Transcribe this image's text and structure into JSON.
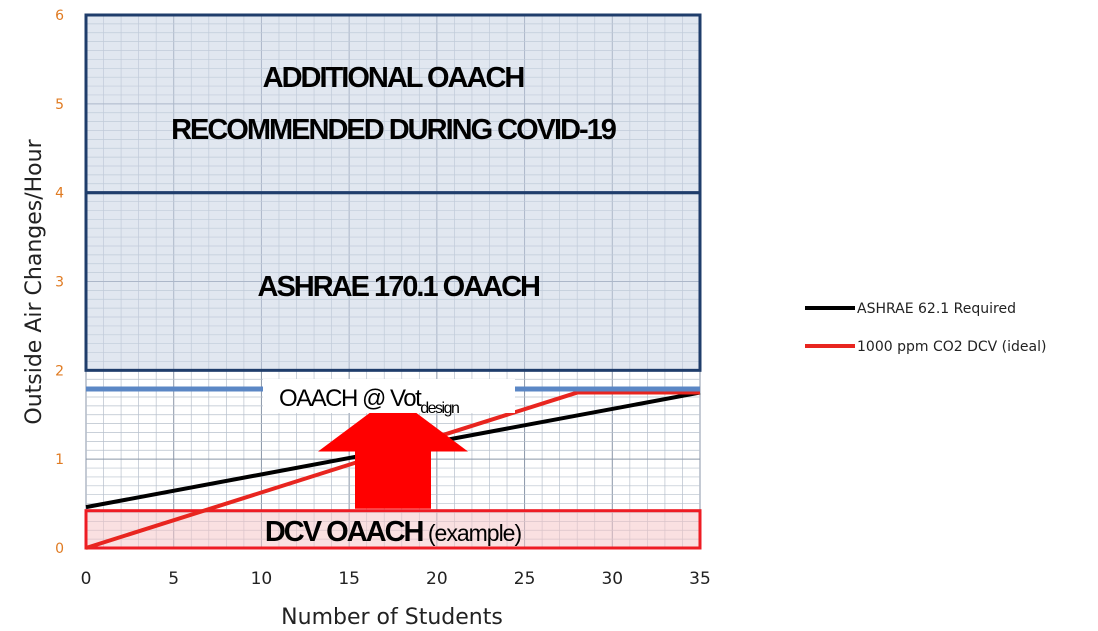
{
  "chart_data": {
    "type": "line",
    "title": "",
    "xlabel": "Number of Students",
    "ylabel": "Outside Air Changes/Hour",
    "xlim": [
      0,
      35
    ],
    "ylim": [
      0,
      6
    ],
    "x_ticks": [
      "0",
      "5",
      "10",
      "15",
      "20",
      "25",
      "30",
      "35"
    ],
    "y_ticks": [
      "0",
      "1",
      "2",
      "3",
      "4",
      "5",
      "6"
    ],
    "grid": true,
    "legend_position": "right",
    "series": [
      {
        "name": "ASHRAE 62.1 Required",
        "color": "#000000",
        "points": [
          [
            0,
            0.46
          ],
          [
            35,
            1.75
          ]
        ]
      },
      {
        "name": "1000 ppm CO2 DCV (ideal)",
        "color": "#e8251f",
        "points": [
          [
            0,
            0.0
          ],
          [
            28,
            1.75
          ],
          [
            35,
            1.75
          ]
        ]
      }
    ],
    "bands": [
      {
        "name": "ashrae-170-band",
        "from": 2,
        "to": 4,
        "label": "ASHRAE 170.1 OAACH",
        "fill": "#c8d3e4",
        "stroke": "#1f3d6b"
      },
      {
        "name": "covid-band",
        "from": 4,
        "to": 6,
        "label_lines": [
          "ADDITIONAL OAACH",
          "RECOMMENDED DURING COVID-19"
        ],
        "fill": "#c8d3e4",
        "stroke": "#1f3d6b"
      },
      {
        "name": "dcv-band",
        "from": 0,
        "to": 0.42,
        "label_main": "DCV OAACH",
        "label_suffix": " (example)",
        "fill": "#f6c6c8",
        "stroke": "#ee1c24"
      }
    ],
    "design_line": {
      "y": 1.79,
      "color": "#5b87c5",
      "label_main": "OAACH @ Vot",
      "label_sub": "design"
    },
    "arrow": {
      "color": "#ff0000",
      "x": 17.5,
      "from_y": 0.42,
      "to_y": 1.75
    }
  }
}
